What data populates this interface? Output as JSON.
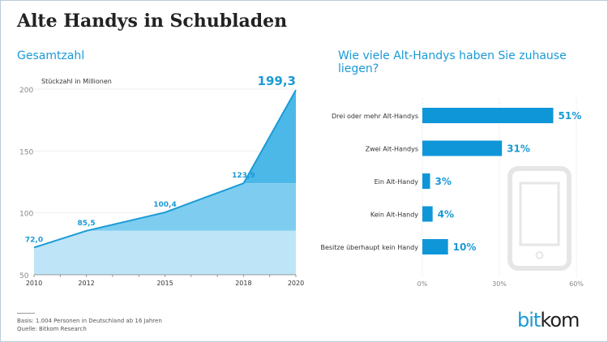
{
  "title": "Alte Handys in Schubladen",
  "left_subtitle": "Gesamtzahl",
  "right_subtitle": "Wie viele Alt-Handys haben Sie zuhause liegen?",
  "footer": {
    "basis": "Basis: 1.004 Personen in Deutschland ab 16 Jahren",
    "source": "Quelle: Bitkom Research"
  },
  "logo": {
    "part1": "bit",
    "part2": "kom"
  },
  "colors": {
    "accent": "#1a9ad6",
    "band_light": "#bde5f7",
    "band_mid": "#7ecdf0",
    "band_dark": "#4cb8e8",
    "bar": "#0f96d9"
  },
  "chart_data": [
    {
      "type": "area",
      "ylabel": "Stückzahl in Millionen",
      "x": [
        2010,
        2012,
        2015,
        2018,
        2020
      ],
      "values": [
        72.0,
        85.5,
        100.4,
        123.9,
        199.3
      ],
      "data_labels": [
        "72,0",
        "85,5",
        "100,4",
        "123,9",
        "199,3"
      ],
      "xticks": [
        "2010",
        "2012",
        "2015",
        "2018",
        "2020"
      ],
      "yticks": [
        "50",
        "100",
        "150",
        "200"
      ],
      "ylim": [
        50,
        200
      ],
      "xlim": [
        2010,
        2020
      ],
      "grid": true
    },
    {
      "type": "bar",
      "orientation": "horizontal",
      "categories": [
        "Drei oder mehr Alt-Handys",
        "Zwei Alt-Handys",
        "Ein Alt-Handy",
        "Kein Alt-Handy",
        "Besitze überhaupt kein Handy"
      ],
      "values": [
        51,
        31,
        3,
        4,
        10
      ],
      "data_labels": [
        "51%",
        "31%",
        "3%",
        "4%",
        "10%"
      ],
      "xticks": [
        "0%",
        "30%",
        "60%"
      ],
      "xlim": [
        0,
        60
      ],
      "decoration": "smartphone-icon"
    }
  ]
}
